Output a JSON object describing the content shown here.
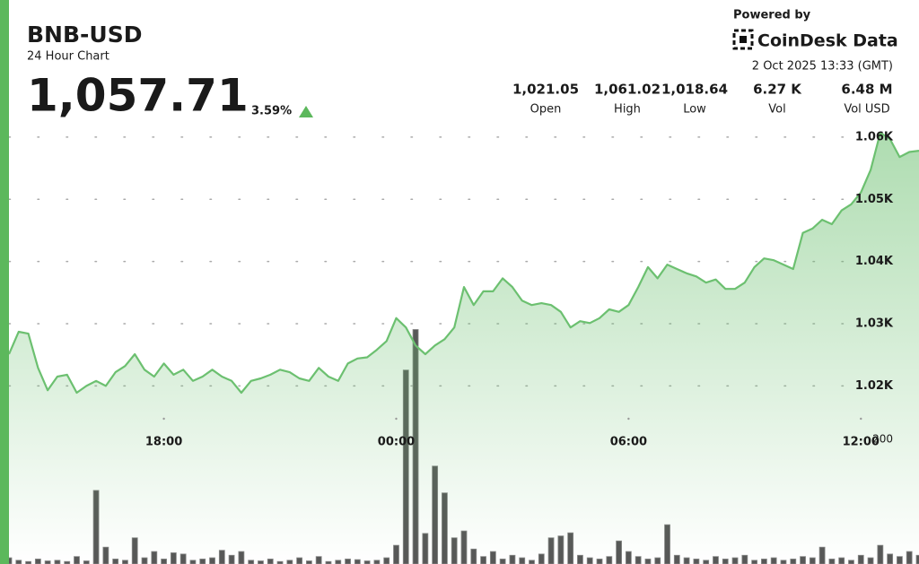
{
  "header": {
    "symbol": "BNB-USD",
    "subtitle": "24 Hour Chart",
    "price": "1,057.71",
    "change": "3.59%",
    "powered_by": "Powered by",
    "brand": "CoinDesk Data",
    "timestamp": "2 Oct 2025 13:33 (GMT)"
  },
  "stats": [
    {
      "value": "1,021.05",
      "label": "Open"
    },
    {
      "value": "1,061.02",
      "label": "High"
    },
    {
      "value": "1,018.64",
      "label": "Low"
    },
    {
      "value": "6.27 K",
      "label": "Vol"
    },
    {
      "value": "6.48 M",
      "label": "Vol USD"
    }
  ],
  "chart_data": [
    {
      "type": "line",
      "color": "#6cc070",
      "categories": [
        null,
        null,
        null,
        null,
        null,
        null,
        null,
        null,
        null,
        null,
        null,
        null,
        null,
        null,
        null,
        null,
        "18:00",
        null,
        null,
        null,
        null,
        null,
        null,
        null,
        null,
        null,
        null,
        null,
        null,
        null,
        null,
        null,
        null,
        null,
        null,
        null,
        null,
        null,
        null,
        null,
        "00:00",
        null,
        null,
        null,
        null,
        null,
        null,
        null,
        null,
        null,
        null,
        null,
        null,
        null,
        null,
        null,
        null,
        null,
        null,
        null,
        null,
        null,
        null,
        null,
        "06:00",
        null,
        null,
        null,
        null,
        null,
        null,
        null,
        null,
        null,
        null,
        null,
        null,
        null,
        null,
        null,
        null,
        null,
        null,
        null,
        null,
        null,
        null,
        null,
        "12:00",
        null,
        null,
        null,
        null,
        null,
        null
      ],
      "values": [
        1025.1,
        1028.7,
        1028.4,
        1022.9,
        1019.3,
        1021.5,
        1021.8,
        1018.9,
        1020.0,
        1020.8,
        1020.0,
        1022.2,
        1023.2,
        1025.1,
        1022.6,
        1021.5,
        1023.6,
        1021.8,
        1022.6,
        1020.8,
        1021.5,
        1022.6,
        1021.5,
        1020.8,
        1018.9,
        1020.8,
        1021.2,
        1021.8,
        1022.6,
        1022.2,
        1021.2,
        1020.8,
        1022.9,
        1021.5,
        1020.8,
        1023.6,
        1024.4,
        1024.6,
        1025.8,
        1027.2,
        1030.9,
        1029.4,
        1026.5,
        1025.1,
        1026.5,
        1027.5,
        1029.4,
        1035.9,
        1033.0,
        1035.2,
        1035.2,
        1037.3,
        1035.9,
        1033.7,
        1033.0,
        1033.3,
        1033.0,
        1031.9,
        1029.4,
        1030.4,
        1030.1,
        1030.9,
        1032.3,
        1031.9,
        1033.0,
        1035.9,
        1039.1,
        1037.3,
        1039.5,
        1038.8,
        1038.1,
        1037.6,
        1036.6,
        1037.1,
        1035.6,
        1035.6,
        1036.6,
        1039.1,
        1040.5,
        1040.2,
        1039.5,
        1038.8,
        1044.6,
        1045.3,
        1046.7,
        1046.0,
        1048.2,
        1049.2,
        1051.1,
        1054.7,
        1060.7,
        1059.7,
        1056.8,
        1057.6,
        1057.8
      ],
      "ylim": [
        1014,
        1062
      ],
      "yticks": [
        {
          "value": 1020,
          "label": "1.02K"
        },
        {
          "value": 1030,
          "label": "1.03K"
        },
        {
          "value": 1040,
          "label": "1.04K"
        },
        {
          "value": 1050,
          "label": "1.05K"
        },
        {
          "value": 1060,
          "label": "1.06K"
        }
      ],
      "grid": true
    },
    {
      "type": "bar",
      "color": "#575757",
      "values": [
        10,
        6,
        4,
        8,
        5,
        6,
        4,
        12,
        5,
        118,
        27,
        8,
        6,
        42,
        10,
        20,
        8,
        18,
        16,
        6,
        8,
        10,
        22,
        14,
        20,
        6,
        5,
        8,
        4,
        6,
        10,
        5,
        12,
        4,
        6,
        8,
        7,
        5,
        6,
        10,
        30,
        311,
        376,
        49,
        157,
        114,
        42,
        53,
        24,
        12,
        20,
        8,
        14,
        10,
        6,
        16,
        42,
        45,
        50,
        14,
        10,
        8,
        12,
        37,
        20,
        12,
        8,
        10,
        63,
        14,
        10,
        8,
        6,
        12,
        8,
        10,
        14,
        6,
        8,
        10,
        6,
        8,
        12,
        10,
        27,
        8,
        10,
        6,
        14,
        10,
        30,
        16,
        12,
        20,
        14
      ],
      "ylim": [
        0,
        450
      ],
      "yticks": [
        200
      ]
    }
  ]
}
